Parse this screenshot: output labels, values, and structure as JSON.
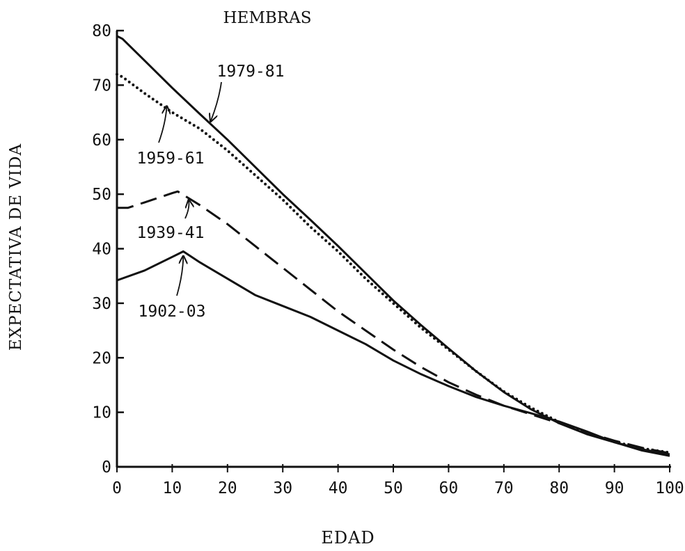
{
  "chart_data": {
    "type": "line",
    "title": "HEMBRAS",
    "xlabel": "EDAD",
    "ylabel": "EXPECTATIVA DE VIDA",
    "xlim": [
      0,
      100
    ],
    "ylim": [
      0,
      80
    ],
    "xticks": [
      "0",
      "10",
      "20",
      "30",
      "40",
      "50",
      "60",
      "70",
      "80",
      "90",
      "100"
    ],
    "yticks": [
      "0",
      "10",
      "20",
      "30",
      "40",
      "50",
      "60",
      "70",
      "80"
    ],
    "grid": false,
    "series": [
      {
        "name": "1979-81",
        "style": "solid",
        "x": [
          0,
          1,
          5,
          10,
          15,
          20,
          25,
          30,
          35,
          40,
          45,
          50,
          55,
          60,
          65,
          70,
          75,
          80,
          85,
          90,
          95,
          100
        ],
        "y": [
          79,
          78.5,
          74.5,
          69.5,
          64.7,
          60,
          55,
          50,
          45.3,
          40.5,
          35.5,
          30.5,
          26,
          21.7,
          17.5,
          13.7,
          10.5,
          8,
          6,
          4.5,
          3.2,
          2.3
        ]
      },
      {
        "name": "1959-61",
        "style": "dotted",
        "x": [
          0,
          1,
          5,
          10,
          15,
          20,
          25,
          30,
          35,
          40,
          45,
          50,
          55,
          60,
          65,
          70,
          75,
          80,
          85,
          90,
          95,
          100
        ],
        "y": [
          72,
          71.5,
          68.5,
          65,
          62,
          58,
          53.5,
          49,
          44,
          39.5,
          34.5,
          30,
          25.5,
          21.5,
          17.5,
          13.8,
          10.8,
          8.2,
          6.2,
          4.6,
          3.4,
          2.6
        ]
      },
      {
        "name": "1939-41",
        "style": "dashed",
        "x": [
          0,
          2,
          5,
          10,
          11,
          15,
          20,
          25,
          30,
          35,
          40,
          45,
          50,
          55,
          60,
          65,
          70,
          75,
          80,
          85,
          90,
          95,
          100
        ],
        "y": [
          47.5,
          47.5,
          48.5,
          50.2,
          50.5,
          48,
          44.5,
          40.5,
          36.5,
          32.5,
          28.5,
          25,
          21.5,
          18.3,
          15.5,
          13.2,
          11.2,
          9.6,
          8,
          6.3,
          4.8,
          3.5,
          2.5
        ]
      },
      {
        "name": "1902-03",
        "style": "solid",
        "x": [
          0,
          5,
          10,
          12,
          15,
          20,
          25,
          30,
          35,
          40,
          45,
          50,
          55,
          60,
          65,
          70,
          75,
          80,
          85,
          90,
          95,
          100
        ],
        "y": [
          34.2,
          36,
          38.5,
          39.5,
          37.5,
          34.5,
          31.5,
          29.5,
          27.5,
          25,
          22.5,
          19.5,
          17,
          14.8,
          12.8,
          11.2,
          9.8,
          8.3,
          6.5,
          4.5,
          3,
          2
        ]
      }
    ],
    "annotations": [
      {
        "text": "1979-81",
        "series": "1979-81",
        "arrow_to": [
          17,
          64
        ]
      },
      {
        "text": "1959-61",
        "series": "1959-61",
        "arrow_to": [
          9,
          66.5
        ]
      },
      {
        "text": "1939-41",
        "series": "1939-41",
        "arrow_to": [
          13,
          49.3
        ]
      },
      {
        "text": "1902-03",
        "series": "1902-03",
        "arrow_to": [
          12,
          39
        ]
      }
    ]
  }
}
